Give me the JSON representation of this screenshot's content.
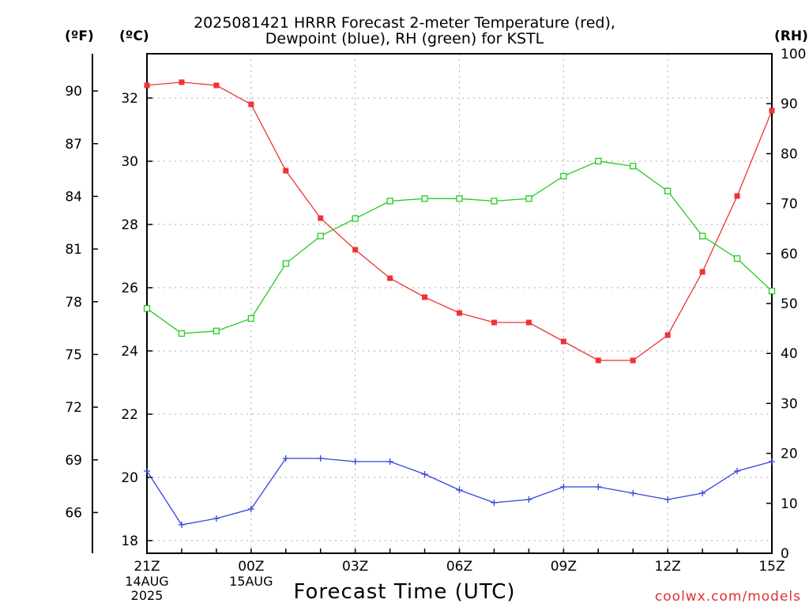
{
  "chart_data": {
    "type": "line",
    "title_line1": "2025081421 HRRR Forecast 2-meter Temperature (red),",
    "title_line2": "Dewpoint (blue), RH (green) for KSTL",
    "units": {
      "fahrenheit": "(ºF)",
      "celsius": "(ºC)",
      "rh": "(RH)"
    },
    "xlabel": "Forecast Time (UTC)",
    "credit": "coolwx.com/models",
    "x": [
      "21Z",
      "22Z",
      "23Z",
      "00Z",
      "01Z",
      "02Z",
      "03Z",
      "04Z",
      "05Z",
      "06Z",
      "07Z",
      "08Z",
      "09Z",
      "10Z",
      "11Z",
      "12Z",
      "13Z",
      "14Z",
      "15Z"
    ],
    "x_ticks": [
      {
        "label": "21Z",
        "sub1": "14AUG",
        "sub2": "2025",
        "index": 0
      },
      {
        "label": "00Z",
        "sub1": "15AUG",
        "sub2": "",
        "index": 3
      },
      {
        "label": "03Z",
        "sub1": "",
        "sub2": "",
        "index": 6
      },
      {
        "label": "06Z",
        "sub1": "",
        "sub2": "",
        "index": 9
      },
      {
        "label": "09Z",
        "sub1": "",
        "sub2": "",
        "index": 12
      },
      {
        "label": "12Z",
        "sub1": "",
        "sub2": "",
        "index": 15
      },
      {
        "label": "15Z",
        "sub1": "",
        "sub2": "",
        "index": 18
      }
    ],
    "ylim_celsius": [
      17.6,
      33.4
    ],
    "ylim_rh": [
      0,
      100
    ],
    "yticks_celsius": [
      18,
      20,
      22,
      24,
      26,
      28,
      30,
      32
    ],
    "yticks_fahrenheit": [
      66,
      69,
      72,
      75,
      78,
      81,
      84,
      87,
      90
    ],
    "yticks_rh": [
      0,
      10,
      20,
      30,
      40,
      50,
      60,
      70,
      80,
      90,
      100
    ],
    "grid": true,
    "series": [
      {
        "name": "Temperature",
        "axis": "celsius",
        "color": "#ee3333",
        "marker": "filled-square",
        "values": [
          32.4,
          32.5,
          32.4,
          31.8,
          29.7,
          28.2,
          27.2,
          26.3,
          25.7,
          25.2,
          24.9,
          24.9,
          24.3,
          23.7,
          23.7,
          24.5,
          26.5,
          28.9,
          31.6
        ]
      },
      {
        "name": "Dewpoint",
        "axis": "celsius",
        "color": "#3344dd",
        "marker": "plus",
        "values": [
          20.2,
          18.5,
          18.7,
          19.0,
          20.6,
          20.6,
          20.5,
          20.5,
          20.1,
          19.6,
          19.2,
          19.3,
          19.7,
          19.7,
          19.5,
          19.3,
          19.5,
          20.2,
          20.5
        ]
      },
      {
        "name": "RH",
        "axis": "rh",
        "color": "#22cc22",
        "marker": "open-square",
        "values": [
          49,
          44,
          44.5,
          47,
          58,
          63.5,
          67,
          70.5,
          71,
          71,
          70.5,
          71,
          75.5,
          78.5,
          77.5,
          72.5,
          63.5,
          59,
          52.5
        ]
      }
    ]
  }
}
